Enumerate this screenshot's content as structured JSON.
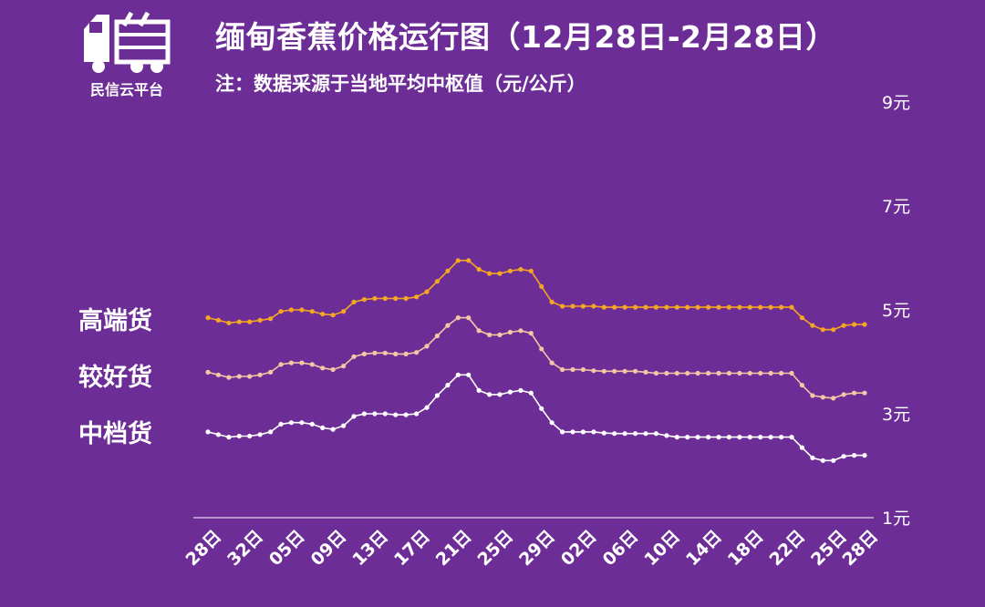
{
  "header": {
    "title": "缅甸香蕉价格运行图（12月28日-2月28日）",
    "subtitle": "注：数据采源于当地平均中枢值（元/公斤）",
    "logo_text": "民信云平台",
    "logo_icon": "truck-icon"
  },
  "colors": {
    "background": "#6d2d96",
    "high": "#f5a623",
    "mid": "#f4c6a4",
    "low": "#ffffff",
    "axis": "#ffffff"
  },
  "chart_data": {
    "type": "line",
    "title": "缅甸香蕉价格运行图（12月28日-2月28日）",
    "ylabel": "",
    "xlabel": "",
    "ylim": [
      1,
      9
    ],
    "y_ticks": [
      "1元",
      "3元",
      "5元",
      "7元",
      "9元"
    ],
    "y_tick_values": [
      1,
      3,
      5,
      7,
      9
    ],
    "x_tick_labels": [
      "28日",
      "32日",
      "05日",
      "09日",
      "13日",
      "17日",
      "21日",
      "25日",
      "29日",
      "02日",
      "06日",
      "10日",
      "14日",
      "18日",
      "22日",
      "25日",
      "28日"
    ],
    "x_tick_indices": [
      0,
      4,
      8,
      12,
      16,
      20,
      24,
      28,
      32,
      36,
      40,
      44,
      48,
      52,
      56,
      60,
      63
    ],
    "grid": false,
    "legend": "left",
    "series": [
      {
        "name": "高端货",
        "color": "#f5a623",
        "values": [
          4.85,
          4.8,
          4.75,
          4.77,
          4.77,
          4.8,
          4.83,
          4.97,
          5.0,
          5.0,
          4.97,
          4.92,
          4.9,
          4.97,
          5.15,
          5.2,
          5.22,
          5.22,
          5.22,
          5.22,
          5.25,
          5.35,
          5.55,
          5.75,
          5.95,
          5.95,
          5.78,
          5.7,
          5.7,
          5.75,
          5.78,
          5.75,
          5.45,
          5.15,
          5.07,
          5.07,
          5.07,
          5.07,
          5.05,
          5.05,
          5.05,
          5.05,
          5.05,
          5.05,
          5.05,
          5.05,
          5.05,
          5.05,
          5.05,
          5.05,
          5.05,
          5.05,
          5.05,
          5.05,
          5.05,
          5.05,
          5.05,
          4.85,
          4.7,
          4.62,
          4.62,
          4.7,
          4.72,
          4.72
        ]
      },
      {
        "name": "较好货",
        "color": "#f4c6a4",
        "values": [
          3.8,
          3.75,
          3.7,
          3.72,
          3.72,
          3.75,
          3.8,
          3.95,
          3.98,
          3.98,
          3.95,
          3.88,
          3.85,
          3.92,
          4.1,
          4.15,
          4.17,
          4.17,
          4.15,
          4.15,
          4.18,
          4.3,
          4.5,
          4.7,
          4.85,
          4.85,
          4.6,
          4.52,
          4.52,
          4.57,
          4.6,
          4.55,
          4.25,
          3.98,
          3.85,
          3.85,
          3.85,
          3.83,
          3.82,
          3.82,
          3.82,
          3.82,
          3.8,
          3.78,
          3.78,
          3.78,
          3.78,
          3.78,
          3.78,
          3.78,
          3.78,
          3.78,
          3.78,
          3.78,
          3.78,
          3.78,
          3.78,
          3.55,
          3.35,
          3.32,
          3.3,
          3.37,
          3.4,
          3.4
        ]
      },
      {
        "name": "中档货",
        "color": "#ffffff",
        "values": [
          2.65,
          2.6,
          2.55,
          2.57,
          2.57,
          2.6,
          2.65,
          2.8,
          2.83,
          2.83,
          2.8,
          2.73,
          2.7,
          2.77,
          2.95,
          3.0,
          3.0,
          3.0,
          2.98,
          2.98,
          3.0,
          3.12,
          3.35,
          3.55,
          3.75,
          3.75,
          3.45,
          3.37,
          3.37,
          3.42,
          3.45,
          3.4,
          3.1,
          2.83,
          2.65,
          2.65,
          2.65,
          2.65,
          2.63,
          2.62,
          2.62,
          2.62,
          2.62,
          2.62,
          2.58,
          2.55,
          2.55,
          2.55,
          2.55,
          2.55,
          2.55,
          2.55,
          2.55,
          2.55,
          2.55,
          2.55,
          2.55,
          2.35,
          2.15,
          2.1,
          2.1,
          2.18,
          2.2,
          2.2
        ]
      }
    ]
  }
}
